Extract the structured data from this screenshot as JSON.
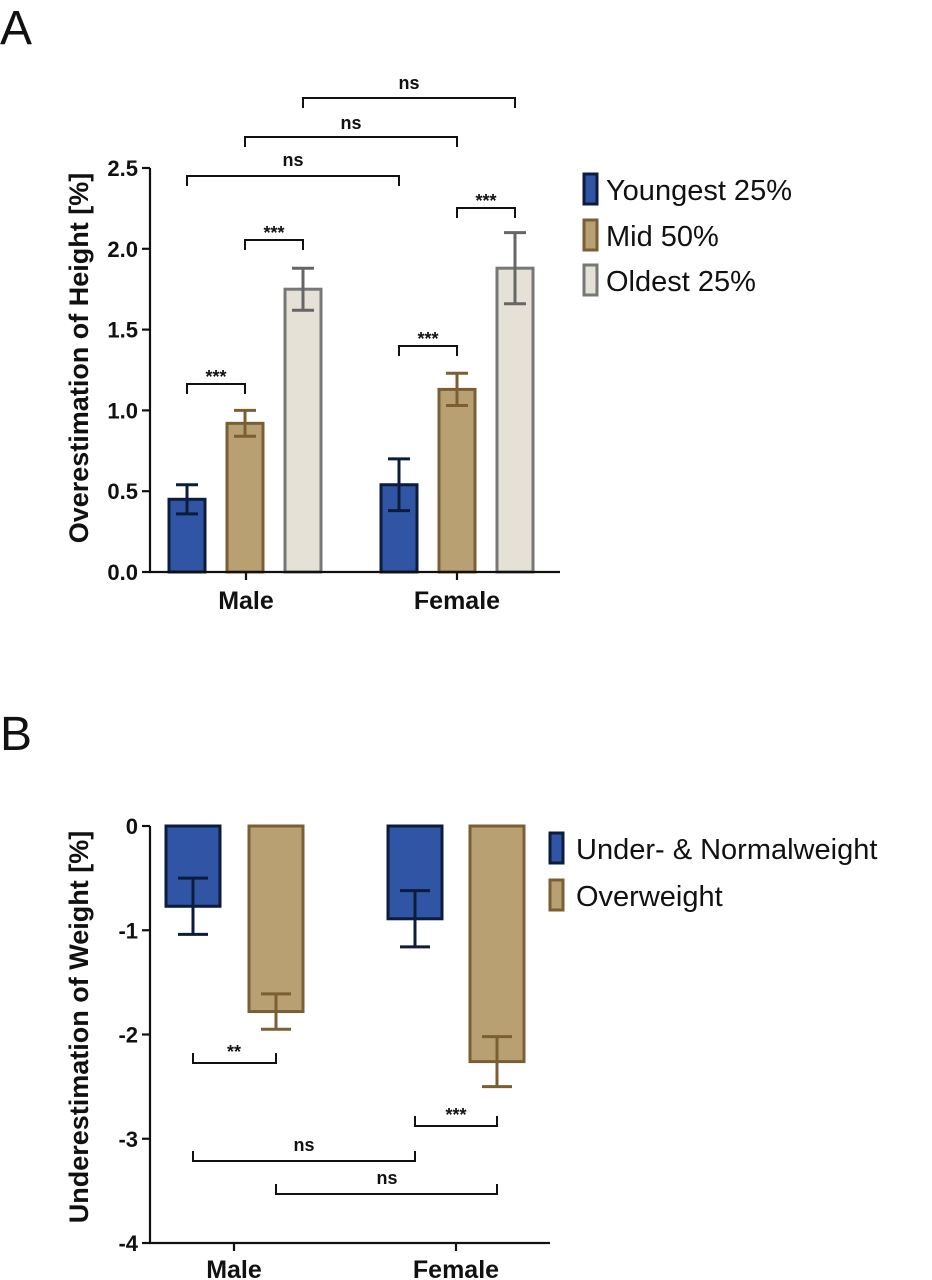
{
  "chart_data": [
    {
      "panel": "A",
      "type": "bar",
      "ylabel": "Overestimation of Height [%]",
      "categories": [
        "Male",
        "Female"
      ],
      "ylim": [
        0,
        2.5
      ],
      "yticks": [
        "0.0",
        "0.5",
        "1.0",
        "1.5",
        "2.0",
        "2.5"
      ],
      "legend_position": "right",
      "series": [
        {
          "name": "Youngest 25%",
          "values": [
            0.45,
            0.54
          ],
          "errors": [
            0.09,
            0.16
          ],
          "fill": "#2f55a4",
          "stroke": "#0d1b3d",
          "err_color": "#0d1b3d"
        },
        {
          "name": "Mid 50%",
          "values": [
            0.92,
            1.13
          ],
          "errors": [
            0.08,
            0.1
          ],
          "fill": "#b8a072",
          "stroke": "#7a5f34",
          "err_color": "#7a5f34"
        },
        {
          "name": "Oldest 25%",
          "values": [
            1.75,
            1.88
          ],
          "errors": [
            0.13,
            0.22
          ],
          "fill": "#e6e1d6",
          "stroke": "#777777",
          "err_color": "#666666"
        }
      ],
      "annotations": [
        {
          "text": "***"
        },
        {
          "text": "***"
        },
        {
          "text": "***"
        },
        {
          "text": "***"
        },
        {
          "text": "ns"
        },
        {
          "text": "ns"
        },
        {
          "text": "ns"
        }
      ]
    },
    {
      "panel": "B",
      "type": "bar",
      "ylabel": "Underestimation of Weight [%]",
      "categories": [
        "Male",
        "Female"
      ],
      "ylim": [
        -4,
        0
      ],
      "yticks": [
        "0",
        "-1",
        "-2",
        "-3",
        "-4"
      ],
      "legend_position": "right",
      "series": [
        {
          "name": "Under- & Normalweight",
          "values": [
            -0.77,
            -0.89
          ],
          "errors": [
            0.27,
            0.27
          ],
          "fill": "#2f55a4",
          "stroke": "#0d1b3d",
          "err_color": "#0d1b3d"
        },
        {
          "name": "Overweight",
          "values": [
            -1.78,
            -2.26
          ],
          "errors": [
            0.17,
            0.24
          ],
          "fill": "#b8a072",
          "stroke": "#7a5f34",
          "err_color": "#7a5f34"
        }
      ],
      "annotations": [
        {
          "text": "**"
        },
        {
          "text": "***"
        },
        {
          "text": "ns"
        },
        {
          "text": "ns"
        }
      ]
    }
  ]
}
